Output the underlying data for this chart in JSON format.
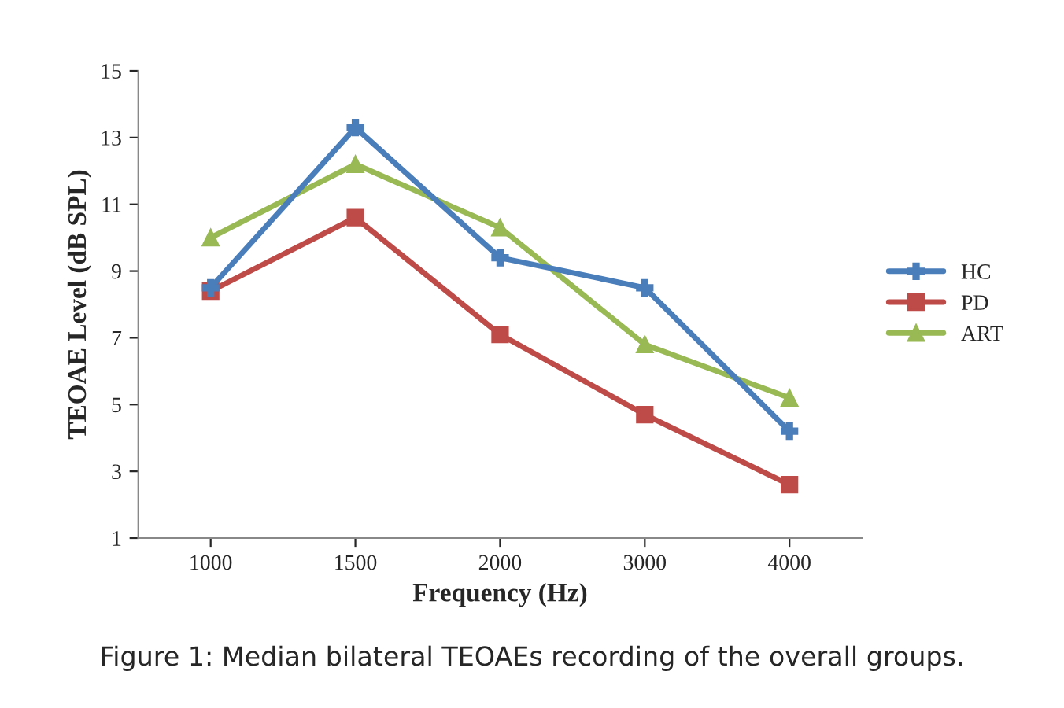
{
  "chart_data": {
    "type": "line",
    "categories": [
      "1000",
      "1500",
      "2000",
      "3000",
      "4000"
    ],
    "series": [
      {
        "name": "HC",
        "color": "#4a7ebb",
        "marker": "cross",
        "values": [
          8.5,
          13.3,
          9.4,
          8.5,
          4.2
        ]
      },
      {
        "name": "PD",
        "color": "#be4b48",
        "marker": "square",
        "values": [
          8.4,
          10.6,
          7.1,
          4.7,
          2.6
        ]
      },
      {
        "name": "ART",
        "color": "#98b954",
        "marker": "triangle",
        "values": [
          10.0,
          12.2,
          10.3,
          6.8,
          5.2
        ]
      }
    ],
    "xlabel": "Frequency (Hz)",
    "ylabel": "TEOAE Level (dB SPL)",
    "ylim": [
      1,
      15
    ],
    "yticks": [
      1,
      3,
      5,
      7,
      9,
      11,
      13,
      15
    ],
    "grid": false,
    "legend": "right",
    "annotations": [
      "Figure 1: Median bilateral TEOAEs recording of the overall groups."
    ]
  }
}
